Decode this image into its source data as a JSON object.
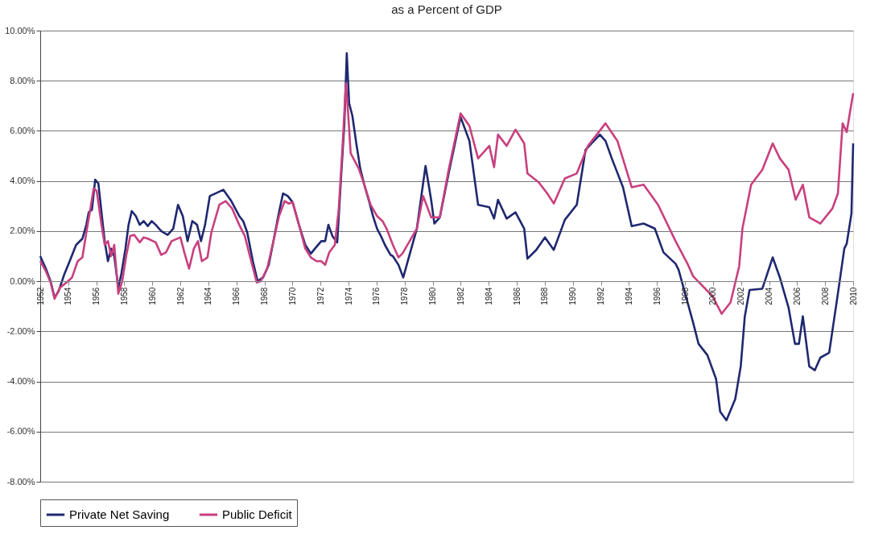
{
  "chart_data": {
    "type": "line",
    "title": "as a Percent of GDP",
    "xlim": [
      1952,
      2010
    ],
    "xticks": [
      1952,
      1954,
      1956,
      1958,
      1960,
      1962,
      1964,
      1966,
      1968,
      1970,
      1972,
      1974,
      1976,
      1978,
      1980,
      1982,
      1984,
      1986,
      1988,
      1990,
      1992,
      1994,
      1996,
      1998,
      2000,
      2002,
      2004,
      2006,
      2008,
      2010
    ],
    "ylim": [
      -8,
      10
    ],
    "yticks": [
      {
        "value": -8,
        "label": "-8.00%"
      },
      {
        "value": -6,
        "label": "-6.00%"
      },
      {
        "value": -4,
        "label": "-4.00%"
      },
      {
        "value": -2,
        "label": "-2.00%"
      },
      {
        "value": 0,
        "label": "0.00%"
      },
      {
        "value": 2,
        "label": "2.00%"
      },
      {
        "value": 4,
        "label": "4.00%"
      },
      {
        "value": 6,
        "label": "6.00%"
      },
      {
        "value": 8,
        "label": "8.00%"
      },
      {
        "value": 10,
        "label": "10.00%"
      }
    ],
    "grid": "y",
    "legend": "bottom",
    "marker": "none",
    "line_style": "solid",
    "series": [
      {
        "name": "Private Net Saving",
        "color": "#1f2870",
        "x": [
          1952.0,
          1952.4,
          1952.74,
          1953.02,
          1953.31,
          1953.7,
          1954.1,
          1954.56,
          1955.01,
          1955.29,
          1955.46,
          1955.69,
          1955.92,
          1956.15,
          1956.37,
          1956.6,
          1956.83,
          1957.06,
          1957.28,
          1957.57,
          1957.79,
          1958.08,
          1958.3,
          1958.53,
          1958.82,
          1959.1,
          1959.38,
          1959.67,
          1959.95,
          1960.24,
          1960.63,
          1961.09,
          1961.49,
          1961.83,
          1962.17,
          1962.51,
          1962.85,
          1963.19,
          1963.47,
          1963.76,
          1964.1,
          1965.06,
          1965.63,
          1966.2,
          1966.48,
          1966.77,
          1967.17,
          1967.51,
          1967.9,
          1968.3,
          1968.64,
          1968.98,
          1969.32,
          1969.66,
          1970.01,
          1970.46,
          1970.91,
          1971.31,
          1971.6,
          1972.05,
          1972.33,
          1972.56,
          1972.85,
          1973.19,
          1973.47,
          1973.7,
          1973.87,
          1974.04,
          1974.27,
          1974.55,
          1974.83,
          1975.12,
          1975.46,
          1975.74,
          1976.03,
          1976.31,
          1976.59,
          1976.99,
          1977.16,
          1977.56,
          1977.9,
          1978.87,
          1979.49,
          1979.89,
          1980.12,
          1980.51,
          1981.14,
          1981.99,
          1982.62,
          1983.24,
          1984.04,
          1984.38,
          1984.66,
          1985.28,
          1985.91,
          1986.53,
          1986.76,
          1987.39,
          1988.01,
          1988.64,
          1989.43,
          1990.28,
          1990.91,
          1991.93,
          1992.33,
          1992.78,
          1993.58,
          1994.2,
          1995.05,
          1995.85,
          1996.47,
          1997.33,
          1997.55,
          1998.58,
          1998.97,
          1999.6,
          2000.22,
          2000.51,
          2000.96,
          2001.59,
          2001.98,
          2002.27,
          2002.61,
          2003.52,
          2004.26,
          2004.77,
          2005.39,
          2005.85,
          2006.13,
          2006.41,
          2006.87,
          2007.27,
          2007.66,
          2008.29,
          2008.91,
          2009.37,
          2009.54,
          2009.88,
          2010.0
        ],
        "values": [
          1.0,
          0.5,
          0.0,
          -0.65,
          -0.4,
          0.25,
          0.8,
          1.45,
          1.7,
          2.25,
          2.75,
          2.85,
          4.05,
          3.9,
          2.75,
          1.6,
          0.8,
          1.3,
          1.0,
          -0.25,
          0.3,
          1.3,
          2.25,
          2.8,
          2.6,
          2.25,
          2.4,
          2.2,
          2.4,
          2.25,
          2.0,
          1.85,
          2.1,
          3.05,
          2.6,
          1.6,
          2.4,
          2.25,
          1.6,
          2.25,
          3.4,
          3.65,
          3.2,
          2.6,
          2.4,
          1.95,
          0.8,
          0.0,
          0.15,
          0.65,
          1.6,
          2.6,
          3.5,
          3.4,
          3.15,
          2.25,
          1.45,
          1.1,
          1.3,
          1.6,
          1.6,
          2.25,
          1.8,
          1.55,
          4.2,
          6.3,
          9.1,
          7.1,
          6.6,
          5.5,
          4.5,
          3.85,
          3.2,
          2.6,
          2.1,
          1.8,
          1.45,
          1.05,
          1.0,
          0.65,
          0.15,
          2.1,
          4.6,
          3.25,
          2.3,
          2.55,
          4.3,
          6.55,
          5.6,
          3.05,
          2.95,
          2.5,
          3.25,
          2.5,
          2.75,
          2.1,
          0.9,
          1.25,
          1.75,
          1.25,
          2.45,
          3.05,
          5.25,
          5.85,
          5.6,
          4.9,
          3.75,
          2.2,
          2.3,
          2.1,
          1.15,
          0.7,
          0.45,
          -1.65,
          -2.5,
          -2.95,
          -3.9,
          -5.2,
          -5.55,
          -4.7,
          -3.4,
          -1.4,
          -0.35,
          -0.3,
          0.95,
          0.15,
          -1.05,
          -2.5,
          -2.5,
          -1.4,
          -3.4,
          -3.55,
          -3.05,
          -2.85,
          -0.5,
          1.3,
          1.5,
          2.7,
          5.5
        ]
      },
      {
        "name": "Public Deficit",
        "color": "#c8407e",
        "x": [
          1952.0,
          1952.4,
          1952.74,
          1953.02,
          1953.42,
          1953.87,
          1954.27,
          1954.67,
          1955.01,
          1955.29,
          1955.58,
          1955.81,
          1956.03,
          1956.37,
          1956.6,
          1956.83,
          1957.06,
          1957.28,
          1957.57,
          1957.85,
          1958.13,
          1958.42,
          1958.7,
          1959.1,
          1959.38,
          1959.67,
          1960.24,
          1960.63,
          1960.97,
          1961.37,
          1962.0,
          1962.28,
          1962.62,
          1962.96,
          1963.25,
          1963.53,
          1963.93,
          1964.21,
          1964.78,
          1965.23,
          1965.69,
          1966.2,
          1966.6,
          1967.05,
          1967.45,
          1967.73,
          1968.19,
          1968.64,
          1969.04,
          1969.44,
          1969.72,
          1970.01,
          1970.46,
          1970.91,
          1971.31,
          1971.71,
          1972.05,
          1972.33,
          1972.62,
          1973.02,
          1973.3,
          1973.58,
          1973.81,
          1973.98,
          1974.15,
          1974.72,
          1975.12,
          1975.57,
          1976.03,
          1976.42,
          1976.71,
          1977.16,
          1977.56,
          1977.84,
          1978.87,
          1979.32,
          1979.89,
          1980.51,
          1981.14,
          1981.99,
          1982.62,
          1983.24,
          1984.04,
          1984.38,
          1984.66,
          1985.28,
          1985.91,
          1986.53,
          1986.76,
          1987.56,
          1988.18,
          1988.64,
          1989.43,
          1990.28,
          1991.08,
          1992.33,
          1993.18,
          1994.2,
          1995.05,
          1996.08,
          1997.33,
          1998.18,
          1998.58,
          1999.97,
          2000.62,
          2001.25,
          2001.87,
          2002.1,
          2002.72,
          2003.52,
          2004.26,
          2004.77,
          2005.39,
          2005.9,
          2006.41,
          2006.87,
          2007.66,
          2008.52,
          2008.91,
          2009.25,
          2009.54,
          2010.0
        ],
        "values": [
          0.8,
          0.4,
          -0.05,
          -0.7,
          -0.25,
          -0.05,
          0.15,
          0.8,
          0.95,
          1.95,
          2.9,
          3.7,
          3.6,
          2.25,
          1.45,
          1.6,
          1.0,
          1.45,
          -0.5,
          0.0,
          1.0,
          1.8,
          1.85,
          1.55,
          1.75,
          1.7,
          1.55,
          1.05,
          1.15,
          1.6,
          1.75,
          1.15,
          0.5,
          1.3,
          1.6,
          0.8,
          0.95,
          1.95,
          3.05,
          3.2,
          2.9,
          2.25,
          1.8,
          0.8,
          -0.05,
          0.0,
          0.5,
          1.6,
          2.6,
          3.2,
          3.1,
          3.15,
          2.25,
          1.3,
          0.95,
          0.8,
          0.8,
          0.65,
          1.15,
          1.45,
          2.9,
          5.5,
          7.9,
          6.6,
          5.1,
          4.5,
          3.85,
          3.05,
          2.6,
          2.4,
          2.1,
          1.45,
          0.95,
          1.1,
          2.1,
          3.4,
          2.55,
          2.55,
          4.45,
          6.7,
          6.2,
          4.9,
          5.4,
          4.55,
          5.85,
          5.4,
          6.05,
          5.5,
          4.3,
          3.95,
          3.5,
          3.1,
          4.1,
          4.3,
          5.4,
          6.3,
          5.6,
          3.75,
          3.85,
          3.05,
          1.6,
          0.7,
          0.2,
          -0.6,
          -1.3,
          -0.85,
          0.6,
          2.1,
          3.85,
          4.45,
          5.5,
          4.9,
          4.45,
          3.25,
          3.85,
          2.55,
          2.3,
          2.9,
          3.5,
          6.3,
          5.95,
          7.5
        ]
      }
    ]
  }
}
